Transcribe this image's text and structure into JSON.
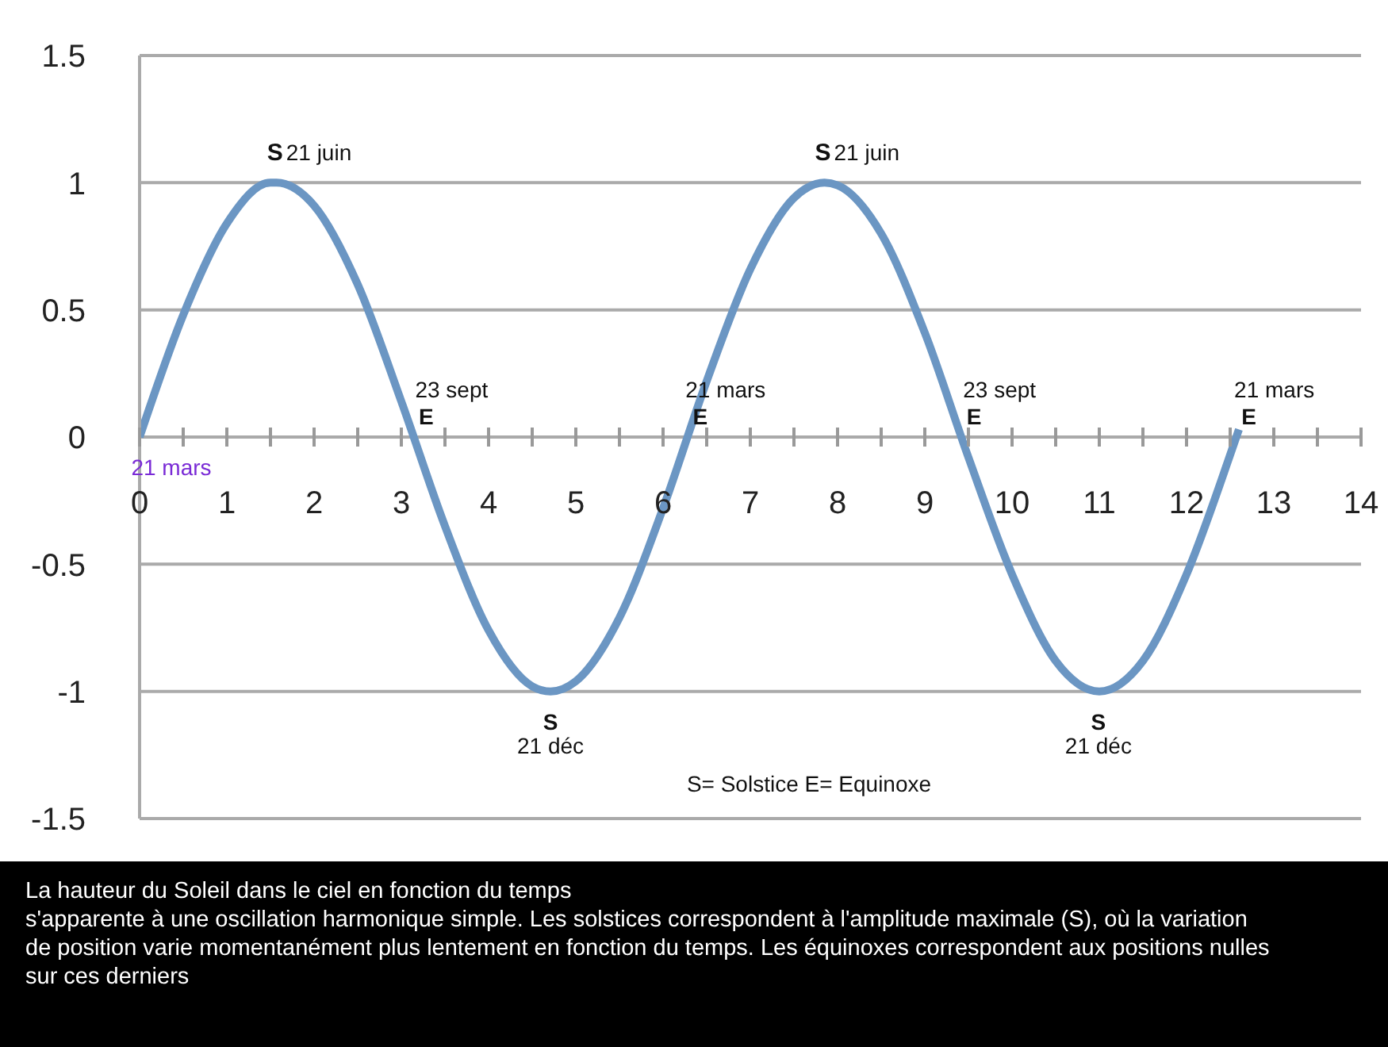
{
  "chart_data": {
    "type": "line",
    "x": [
      0,
      0.5,
      1,
      1.5,
      1.57,
      2,
      2.5,
      3,
      3.5,
      4,
      4.5,
      4.71,
      5,
      5.5,
      6,
      6.5,
      7,
      7.5,
      7.85,
      8,
      8.5,
      9,
      9.5,
      10,
      10.5,
      11,
      11.5,
      12,
      12.5,
      12.6
    ],
    "series": [
      {
        "color": "#6b96c3",
        "values": [
          0,
          0.48,
          0.84,
          1.0,
          1.0,
          0.91,
          0.6,
          0.14,
          -0.35,
          -0.76,
          -0.98,
          -1.0,
          -0.96,
          -0.71,
          -0.28,
          0.22,
          0.66,
          0.94,
          1.0,
          0.99,
          0.8,
          0.41,
          -0.08,
          -0.54,
          -0.88,
          -1.0,
          -0.88,
          -0.54,
          -0.07,
          0.03
        ]
      }
    ],
    "xlim": [
      0,
      14
    ],
    "xticks": [
      0,
      {
        "value": 0.5,
        "label": null
      },
      1,
      {
        "value": 1.5,
        "label": null
      },
      2,
      {
        "value": 2.5,
        "label": null
      },
      3,
      {
        "value": 3.5,
        "label": null
      },
      4,
      {
        "value": 4.5,
        "label": null
      },
      5,
      {
        "value": 5.5,
        "label": null
      },
      6,
      {
        "value": 6.5,
        "label": null
      },
      7,
      {
        "value": 7.5,
        "label": null
      },
      8,
      {
        "value": 8.5,
        "label": null
      },
      9,
      {
        "value": 9.5,
        "label": null
      },
      10,
      {
        "value": 10.5,
        "label": null
      },
      11,
      {
        "value": 11.5,
        "label": null
      },
      12,
      {
        "value": 12.5,
        "label": null
      },
      13,
      {
        "value": 13.5,
        "label": null
      },
      14
    ],
    "ylim": [
      -1.5,
      1.5
    ],
    "yticks": [
      -1.5,
      -1,
      -0.5,
      0,
      0.5,
      1,
      1.5
    ],
    "grid": "y",
    "marker": "none",
    "line_style": "solid",
    "annotations": [
      {
        "text": "S",
        "x": 1.57,
        "y": 1
      },
      {
        "text": "21 juin",
        "x": 1.57,
        "y": 1
      },
      {
        "text": "21 mars",
        "x": 0,
        "y": 0
      },
      {
        "text": "23 sept",
        "x": 3.14,
        "y": 0
      },
      {
        "text": "E",
        "x": 3.14,
        "y": 0
      },
      {
        "text": "S",
        "x": 4.71,
        "y": -1
      },
      {
        "text": "21 déc",
        "x": 4.71,
        "y": -1
      },
      {
        "text": "21 mars",
        "x": 6.28,
        "y": 0
      },
      {
        "text": "E",
        "x": 6.28,
        "y": 0
      },
      {
        "text": "S",
        "x": 7.85,
        "y": 1
      },
      {
        "text": "21 juin",
        "x": 7.85,
        "y": 1
      },
      {
        "text": "23 sept",
        "x": 9.42,
        "y": 0
      },
      {
        "text": "E",
        "x": 9.42,
        "y": 0
      },
      {
        "text": "S",
        "x": 10.99,
        "y": -1
      },
      {
        "text": "21 déc",
        "x": 10.99,
        "y": -1
      },
      {
        "text": "21 mars",
        "x": 12.57,
        "y": 0
      },
      {
        "text": "E",
        "x": 12.57,
        "y": 0
      },
      "S= Solstice E= Equinoxe",
      "La hauteur du Soleil dans le ciel en fonction du temps\ns'apparente à une oscillation harmonique simple. Les solstices correspondent à l'amplitude maximale (S), où la variation\nde position varie momentanément plus lentement en fonction du temps. Les équinoxes correspondent aux positions nulles\nsur ces derniers"
    ]
  }
}
